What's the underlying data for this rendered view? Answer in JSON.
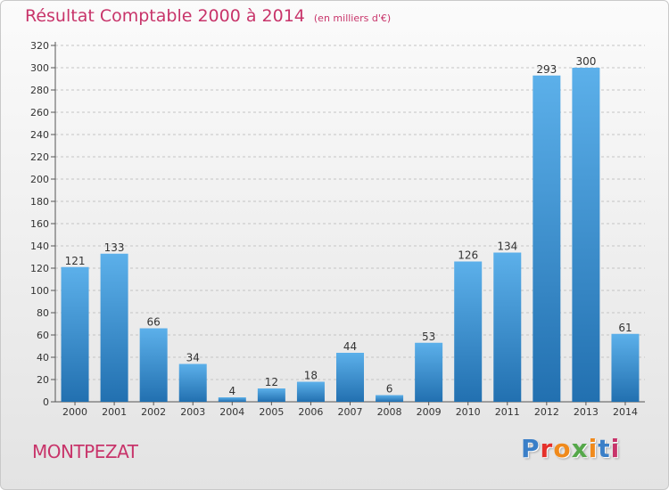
{
  "title": {
    "main": "Résultat Comptable 2000 à 2014",
    "unit": "(en milliers d'€)"
  },
  "commune": "MONTPEZAT",
  "logo": {
    "text": "Proxiti",
    "letter_colors": [
      "#3a7fc8",
      "#e5302a",
      "#f08a1c",
      "#55a84a",
      "#f08a1c",
      "#3a7fc8",
      "#c8346a"
    ]
  },
  "colors": {
    "title": "#c8346a",
    "bar_top": "#5cb0ea",
    "bar_bottom": "#2270b0"
  },
  "chart_data": {
    "type": "bar",
    "categories": [
      "2000",
      "2001",
      "2002",
      "2003",
      "2004",
      "2005",
      "2006",
      "2007",
      "2008",
      "2009",
      "2010",
      "2011",
      "2012",
      "2013",
      "2014"
    ],
    "values": [
      121,
      133,
      66,
      34,
      4,
      12,
      18,
      44,
      6,
      53,
      126,
      134,
      293,
      300,
      61
    ],
    "yticks": [
      0,
      20,
      40,
      60,
      80,
      100,
      120,
      140,
      160,
      180,
      200,
      220,
      240,
      260,
      280,
      300,
      320
    ],
    "ylim": [
      0,
      320
    ],
    "grid": true,
    "data_labels": true
  }
}
